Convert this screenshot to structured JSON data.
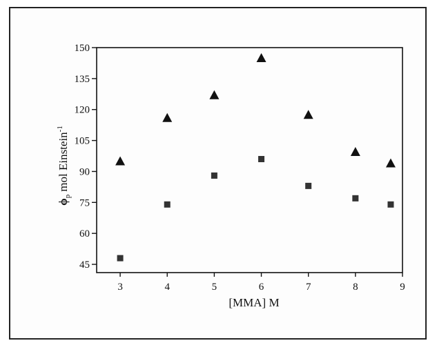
{
  "chart_data": {
    "type": "scatter",
    "title": "",
    "xlabel": "[MMA] M",
    "ylabel_symbol": "ϕ",
    "ylabel_subscript": "p",
    "ylabel_text": "mol Einstein",
    "ylabel_superscript": "-1",
    "xlim": [
      2.5,
      9
    ],
    "ylim": [
      41,
      150
    ],
    "xticks": [
      3,
      4,
      5,
      6,
      7,
      8,
      9
    ],
    "yticks": [
      45,
      60,
      75,
      90,
      105,
      120,
      135,
      150
    ],
    "grid": false,
    "legend": "none",
    "series": [
      {
        "marker": "triangle",
        "color": "#111111",
        "x": [
          3,
          4,
          5,
          6,
          7,
          8,
          8.75
        ],
        "y": [
          95,
          116,
          127,
          145,
          117.5,
          99.5,
          94
        ]
      },
      {
        "marker": "square",
        "color": "#333333",
        "x": [
          3,
          4,
          5,
          6,
          7,
          8,
          8.75
        ],
        "y": [
          48,
          74,
          88,
          96,
          83,
          77,
          74
        ]
      }
    ]
  }
}
